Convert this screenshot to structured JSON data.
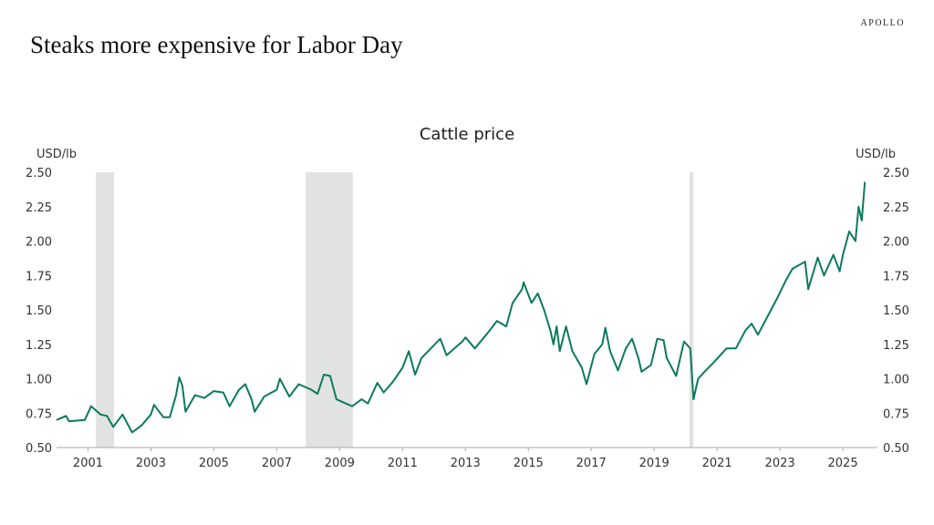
{
  "header": {
    "title": "Steaks more expensive for Labor Day",
    "brand": "APOLLO"
  },
  "chart_data": {
    "type": "line",
    "title": "Cattle price",
    "ylabel_left": "USD/lb",
    "ylabel_right": "USD/lb",
    "xlim": [
      2000,
      2026.1
    ],
    "ylim": [
      0.5,
      2.5
    ],
    "yticks": [
      "0.50",
      "0.75",
      "1.00",
      "1.25",
      "1.50",
      "1.75",
      "2.00",
      "2.25",
      "2.50"
    ],
    "xticks": [
      "2001",
      "2003",
      "2005",
      "2007",
      "2009",
      "2011",
      "2013",
      "2015",
      "2017",
      "2019",
      "2021",
      "2023",
      "2025"
    ],
    "grid": false,
    "line_color": "#0b7a5e",
    "recession_color": "#e1e3e2",
    "recessions": [
      [
        2001.25,
        2001.83
      ],
      [
        2007.92,
        2009.42
      ],
      [
        2020.12,
        2020.25
      ]
    ],
    "series": [
      {
        "x": [
          2000.0,
          2000.3,
          2000.4,
          2000.9,
          2001.1,
          2001.4,
          2001.6,
          2001.8,
          2002.1,
          2002.4,
          2002.7,
          2003.0,
          2003.1,
          2003.4,
          2003.6,
          2003.8,
          2003.9,
          2004.0,
          2004.1,
          2004.4,
          2004.7,
          2005.0,
          2005.3,
          2005.5,
          2005.8,
          2006.0,
          2006.2,
          2006.3,
          2006.6,
          2007.0,
          2007.1,
          2007.4,
          2007.7,
          2008.1,
          2008.3,
          2008.5,
          2008.7,
          2008.9,
          2009.1,
          2009.4,
          2009.7,
          2009.9,
          2010.2,
          2010.4,
          2010.7,
          2011.0,
          2011.2,
          2011.4,
          2011.6,
          2011.9,
          2012.2,
          2012.4,
          2012.7,
          2012.9,
          2013.0,
          2013.3,
          2013.7,
          2014.0,
          2014.3,
          2014.5,
          2014.8,
          2014.85,
          2015.1,
          2015.3,
          2015.5,
          2015.7,
          2015.8,
          2015.9,
          2016.0,
          2016.2,
          2016.4,
          2016.7,
          2016.85,
          2017.1,
          2017.35,
          2017.45,
          2017.6,
          2017.85,
          2018.1,
          2018.3,
          2018.5,
          2018.6,
          2018.9,
          2019.1,
          2019.3,
          2019.4,
          2019.7,
          2019.95,
          2020.15,
          2020.25,
          2020.4,
          2020.6,
          2020.9,
          2021.3,
          2021.6,
          2021.9,
          2022.1,
          2022.3,
          2022.6,
          2022.9,
          2023.2,
          2023.4,
          2023.8,
          2023.9,
          2024.2,
          2024.4,
          2024.7,
          2024.9,
          2025.0,
          2025.2,
          2025.4,
          2025.5,
          2025.6,
          2025.7
        ],
        "y": [
          0.7,
          0.73,
          0.69,
          0.7,
          0.8,
          0.74,
          0.73,
          0.65,
          0.74,
          0.61,
          0.66,
          0.74,
          0.81,
          0.72,
          0.72,
          0.88,
          1.01,
          0.95,
          0.76,
          0.88,
          0.86,
          0.91,
          0.9,
          0.8,
          0.92,
          0.96,
          0.85,
          0.76,
          0.87,
          0.92,
          1.0,
          0.87,
          0.96,
          0.92,
          0.89,
          1.03,
          1.02,
          0.85,
          0.83,
          0.8,
          0.85,
          0.82,
          0.97,
          0.9,
          0.98,
          1.08,
          1.2,
          1.03,
          1.15,
          1.22,
          1.29,
          1.17,
          1.23,
          1.27,
          1.3,
          1.22,
          1.33,
          1.42,
          1.38,
          1.55,
          1.65,
          1.7,
          1.55,
          1.62,
          1.5,
          1.35,
          1.25,
          1.38,
          1.2,
          1.38,
          1.2,
          1.08,
          0.96,
          1.18,
          1.25,
          1.37,
          1.2,
          1.06,
          1.22,
          1.29,
          1.15,
          1.05,
          1.1,
          1.29,
          1.28,
          1.15,
          1.02,
          1.27,
          1.22,
          0.85,
          1.0,
          1.05,
          1.12,
          1.22,
          1.22,
          1.35,
          1.4,
          1.32,
          1.45,
          1.58,
          1.72,
          1.8,
          1.85,
          1.65,
          1.88,
          1.75,
          1.9,
          1.78,
          1.9,
          2.07,
          2.0,
          2.25,
          2.15,
          2.43
        ]
      }
    ]
  }
}
